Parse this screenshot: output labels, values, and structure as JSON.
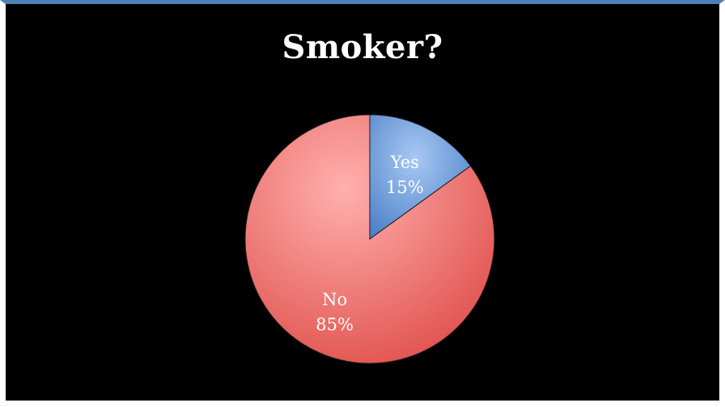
{
  "chart_data": {
    "type": "pie",
    "title": "Smoker?",
    "slices": [
      {
        "label": "Yes",
        "value": 15,
        "display": "15%",
        "color": "#4f81bd"
      },
      {
        "label": "No",
        "value": 85,
        "display": "85%",
        "color": "#e0504d"
      }
    ],
    "start_angle_deg": 0,
    "direction": "clockwise",
    "legend": "none",
    "style": {
      "background": "#000000",
      "frame_accent": "#4f7fb4",
      "text_color": "#ffffff"
    }
  }
}
